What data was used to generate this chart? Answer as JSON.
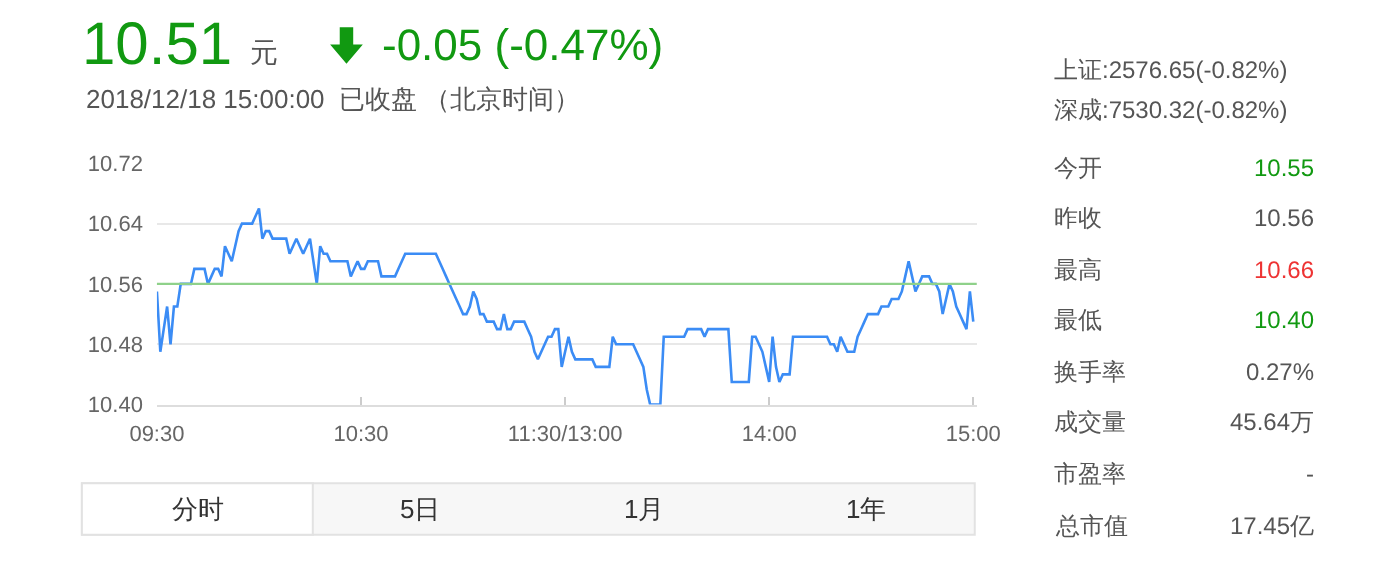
{
  "chart_data": {
    "type": "line",
    "title": "10.51",
    "subtitle": "2018/12/18 15:00:00  已收盘 （北京时间）",
    "categories": [
      "09:30",
      null,
      null,
      null,
      null,
      null,
      null,
      null,
      null,
      null,
      null,
      null,
      null,
      null,
      null,
      null,
      null,
      null,
      null,
      null,
      null,
      null,
      null,
      null,
      null,
      null,
      null,
      null,
      null,
      null,
      null,
      null,
      null,
      null,
      null,
      null,
      null,
      null,
      null,
      null,
      null,
      null,
      null,
      null,
      null,
      null,
      null,
      null,
      null,
      null,
      null,
      null,
      null,
      null,
      null,
      null,
      null,
      null,
      null,
      null,
      "10:30",
      null,
      null,
      null,
      null,
      null,
      null,
      null,
      null,
      null,
      null,
      null,
      null,
      null,
      null,
      null,
      null,
      null,
      null,
      null,
      null,
      null,
      null,
      null,
      null,
      null,
      null,
      null,
      null,
      null,
      null,
      null,
      null,
      null,
      null,
      null,
      null,
      null,
      null,
      null,
      null,
      null,
      null,
      null,
      null,
      null,
      null,
      null,
      null,
      null,
      null,
      null,
      null,
      null,
      null,
      null,
      null,
      null,
      null,
      null,
      "11:30/13:00",
      null,
      null,
      null,
      null,
      null,
      null,
      null,
      null,
      null,
      null,
      null,
      null,
      null,
      null,
      null,
      null,
      null,
      null,
      null,
      null,
      null,
      null,
      null,
      null,
      null,
      null,
      null,
      null,
      null,
      null,
      null,
      null,
      null,
      null,
      null,
      null,
      null,
      null,
      null,
      null,
      null,
      null,
      null,
      null,
      null,
      null,
      null,
      null,
      null,
      null,
      null,
      null,
      null,
      null,
      null,
      null,
      null,
      null,
      null,
      "14:00",
      null,
      null,
      null,
      null,
      null,
      null,
      null,
      null,
      null,
      null,
      null,
      null,
      null,
      null,
      null,
      null,
      null,
      null,
      null,
      null,
      null,
      null,
      null,
      null,
      null,
      null,
      null,
      null,
      null,
      null,
      null,
      null,
      null,
      null,
      null,
      null,
      null,
      null,
      null,
      null,
      null,
      null,
      null,
      null,
      null,
      null,
      null,
      null,
      null,
      null,
      null,
      null,
      null,
      null,
      null,
      null,
      null,
      null,
      null,
      "15:00"
    ],
    "series": [
      {
        "color": "#3b8cf5",
        "values": [
          10.55,
          10.47,
          10.5,
          10.53,
          10.48,
          10.53,
          10.53,
          10.56,
          10.56,
          10.56,
          10.56,
          10.58,
          10.58,
          10.58,
          10.58,
          10.56,
          10.57,
          10.58,
          10.58,
          10.57,
          10.61,
          10.6,
          10.59,
          10.61,
          10.63,
          10.64,
          10.64,
          10.64,
          10.64,
          10.65,
          10.66,
          10.62,
          10.63,
          10.63,
          10.62,
          10.62,
          10.62,
          10.62,
          10.62,
          10.6,
          10.61,
          10.62,
          10.61,
          10.6,
          10.61,
          10.62,
          10.59,
          10.56,
          10.61,
          10.6,
          10.6,
          10.59,
          10.59,
          10.59,
          10.59,
          10.59,
          10.59,
          10.57,
          10.58,
          10.59,
          10.58,
          10.58,
          10.59,
          10.59,
          10.59,
          10.59,
          10.57,
          10.57,
          10.57,
          10.57,
          10.57,
          10.58,
          10.59,
          10.6,
          10.6,
          10.6,
          10.6,
          10.6,
          10.6,
          10.6,
          10.6,
          10.6,
          10.6,
          10.59,
          10.58,
          10.57,
          10.56,
          10.55,
          10.54,
          10.53,
          10.52,
          10.52,
          10.53,
          10.55,
          10.54,
          10.52,
          10.52,
          10.51,
          10.51,
          10.51,
          10.5,
          10.5,
          10.52,
          10.5,
          10.5,
          10.51,
          10.51,
          10.51,
          10.51,
          10.5,
          10.49,
          10.47,
          10.46,
          10.47,
          10.48,
          10.49,
          10.49,
          10.5,
          10.5,
          10.45,
          10.47,
          10.49,
          10.47,
          10.46,
          10.46,
          10.46,
          10.46,
          10.46,
          10.46,
          10.45,
          10.45,
          10.45,
          10.45,
          10.45,
          10.49,
          10.48,
          10.48,
          10.48,
          10.48,
          10.48,
          10.48,
          10.47,
          10.46,
          10.45,
          10.42,
          10.4,
          10.4,
          10.4,
          10.4,
          10.49,
          10.49,
          10.49,
          10.49,
          10.49,
          10.49,
          10.49,
          10.5,
          10.5,
          10.5,
          10.5,
          10.5,
          10.49,
          10.5,
          10.5,
          10.5,
          10.5,
          10.5,
          10.5,
          10.5,
          10.43,
          10.43,
          10.43,
          10.43,
          10.43,
          10.43,
          10.49,
          10.49,
          10.48,
          10.47,
          10.45,
          10.43,
          10.49,
          10.45,
          10.43,
          10.44,
          10.44,
          10.44,
          10.49,
          10.49,
          10.49,
          10.49,
          10.49,
          10.49,
          10.49,
          10.49,
          10.49,
          10.49,
          10.49,
          10.48,
          10.48,
          10.47,
          10.49,
          10.48,
          10.47,
          10.47,
          10.47,
          10.49,
          10.5,
          10.51,
          10.52,
          10.52,
          10.52,
          10.52,
          10.53,
          10.53,
          10.53,
          10.54,
          10.54,
          10.54,
          10.55,
          10.57,
          10.59,
          10.57,
          10.55,
          10.56,
          10.57,
          10.57,
          10.57,
          10.56,
          10.56,
          10.55,
          10.52,
          10.54,
          10.56,
          10.55,
          10.53,
          10.52,
          10.51,
          10.5,
          10.55,
          10.51
        ]
      }
    ],
    "ylim": [
      10.4,
      10.72
    ],
    "yticks": [
      {
        "value": 10.4,
        "label": "10.40"
      },
      {
        "value": 10.48,
        "label": "10.48"
      },
      {
        "value": 10.56,
        "label": "10.56"
      },
      {
        "value": 10.64,
        "label": "10.64"
      },
      {
        "value": 10.72,
        "label": "10.72"
      }
    ],
    "ref_lines": [
      {
        "axis": "y",
        "value": 10.56,
        "color": "#8fd18a"
      }
    ],
    "grid": "y",
    "marker": "none",
    "line_style": "solid",
    "annotations": [
      "元",
      "-0.05 (-0.47%)",
      "上证:2576.65(-0.82%)",
      "深成:7530.32(-0.82%)",
      "今开",
      "10.55",
      "昨收",
      "10.56",
      "最高",
      "10.66",
      "最低",
      "10.40",
      "换手率",
      "0.27%",
      "成交量",
      "45.64万",
      "市盈率",
      "-",
      "总市值",
      "17.45亿",
      "分时",
      "5日",
      "1月",
      "1年"
    ]
  }
}
